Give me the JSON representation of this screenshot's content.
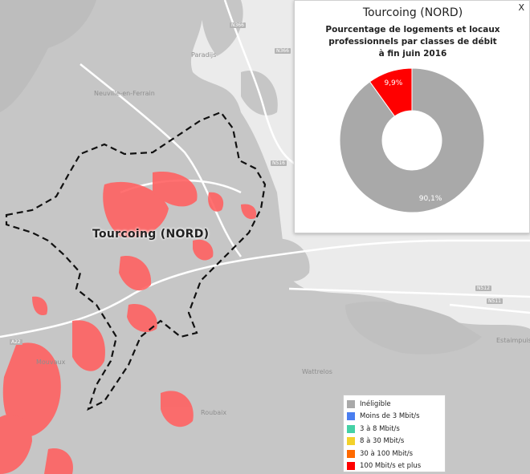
{
  "map": {
    "places": [
      "Paradijs",
      "Neuville-en-Ferrain",
      "Mouvaux",
      "Wattrelos",
      "Roubaix",
      "Estaimpuis"
    ],
    "roads": [
      "N366",
      "N366",
      "N516",
      "N512",
      "N511",
      "A22"
    ],
    "city_label": "Tourcoing (NORD)"
  },
  "popup": {
    "close": "X",
    "title": "Tourcoing (NORD)",
    "subtitle": "Pourcentage de logements et locaux\nprofessionnels par classes de débit\nà fin juin 2016"
  },
  "chart_data": {
    "type": "pie",
    "variant": "donut",
    "title": "Tourcoing (NORD)",
    "subtitle": "Pourcentage de logements et locaux professionnels par classes de débit à fin juin 2016",
    "slices": [
      {
        "label": "Inéligible",
        "value": 90.1,
        "display": "90,1%",
        "color": "#a9a9a9"
      },
      {
        "label": "100 Mbit/s et plus",
        "value": 9.9,
        "display": "9,9%",
        "color": "#ff0000"
      }
    ]
  },
  "legend": {
    "items": [
      {
        "label": "Inéligible",
        "color": "#a9a9a9"
      },
      {
        "label": "Moins de 3 Mbit/s",
        "color": "#4a7ef0"
      },
      {
        "label": "3 à 8 Mbit/s",
        "color": "#45d1a6"
      },
      {
        "label": "8 à 30 Mbit/s",
        "color": "#f3d12a"
      },
      {
        "label": "30 à 100 Mbit/s",
        "color": "#ff6a00"
      },
      {
        "label": "100 Mbit/s et plus",
        "color": "#ff0000"
      }
    ]
  }
}
